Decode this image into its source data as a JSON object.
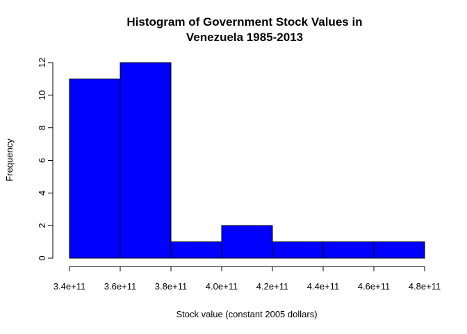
{
  "chart_data": {
    "type": "bar",
    "title_lines": [
      "Histogram of Government Stock Values in",
      "Venezuela 1985-2013"
    ],
    "xlabel": "Stock value (constant 2005 dollars)",
    "ylabel": "Frequency",
    "bins": [
      {
        "from": 340000000000.0,
        "to": 360000000000.0,
        "value": 11
      },
      {
        "from": 360000000000.0,
        "to": 380000000000.0,
        "value": 12
      },
      {
        "from": 380000000000.0,
        "to": 400000000000.0,
        "value": 1
      },
      {
        "from": 400000000000.0,
        "to": 420000000000.0,
        "value": 2
      },
      {
        "from": 420000000000.0,
        "to": 440000000000.0,
        "value": 1
      },
      {
        "from": 440000000000.0,
        "to": 460000000000.0,
        "value": 1
      },
      {
        "from": 460000000000.0,
        "to": 480000000000.0,
        "value": 1
      }
    ],
    "xlim": [
      340000000000.0,
      480000000000.0
    ],
    "ylim": [
      0,
      12
    ],
    "x_ticks": [
      {
        "value": 340000000000.0,
        "label": "3.4e+11"
      },
      {
        "value": 360000000000.0,
        "label": "3.6e+11"
      },
      {
        "value": 380000000000.0,
        "label": "3.8e+11"
      },
      {
        "value": 400000000000.0,
        "label": "4.0e+11"
      },
      {
        "value": 420000000000.0,
        "label": "4.2e+11"
      },
      {
        "value": 440000000000.0,
        "label": "4.4e+11"
      },
      {
        "value": 460000000000.0,
        "label": "4.6e+11"
      },
      {
        "value": 480000000000.0,
        "label": "4.8e+11"
      }
    ],
    "y_ticks": [
      {
        "value": 0,
        "label": "0"
      },
      {
        "value": 2,
        "label": "2"
      },
      {
        "value": 4,
        "label": "4"
      },
      {
        "value": 6,
        "label": "6"
      },
      {
        "value": 8,
        "label": "8"
      },
      {
        "value": 10,
        "label": "10"
      },
      {
        "value": 12,
        "label": "12"
      }
    ],
    "bar_color": "#0000ff",
    "grid": false,
    "legend": "none"
  }
}
